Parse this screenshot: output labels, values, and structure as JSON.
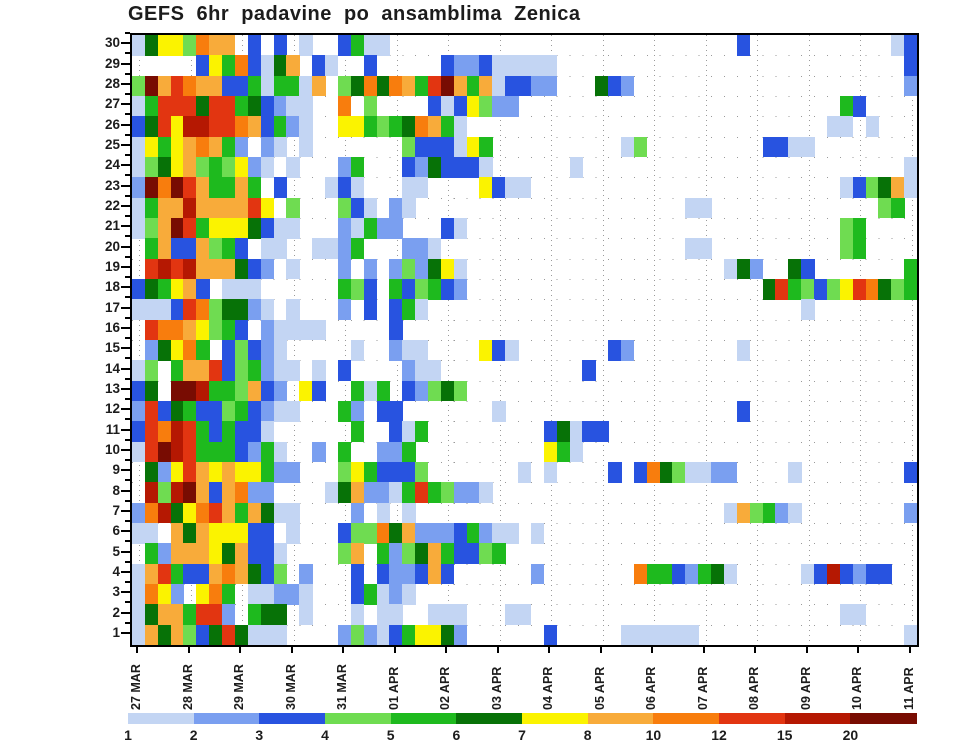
{
  "title": "GEFS 6hr padavine po ansamblima Zenica",
  "y_axis": {
    "labels": [
      "30",
      "29",
      "28",
      "27",
      "26",
      "25",
      "24",
      "23",
      "22",
      "21",
      "20",
      "19",
      "18",
      "17",
      "16",
      "15",
      "14",
      "13",
      "12",
      "11",
      "10",
      "9",
      "8",
      "7",
      "6",
      "5",
      "4",
      "3",
      "2",
      "1"
    ]
  },
  "x_axis": {
    "labels": [
      "27 MAR",
      "28 MAR",
      "29 MAR",
      "30 MAR",
      "31 MAR",
      "01 APR",
      "02 APR",
      "03 APR",
      "04 APR",
      "05 APR",
      "06 APR",
      "07 APR",
      "08 APR",
      "09 APR",
      "10 APR",
      "11 APR"
    ]
  },
  "colorbar": {
    "tick_labels": [
      "1",
      "2",
      "3",
      "4",
      "5",
      "6",
      "7",
      "8",
      "10",
      "12",
      "15",
      "20"
    ],
    "colors": [
      "#c3d5f3",
      "#7a9ff0",
      "#2853e0",
      "#6fdc51",
      "#1eba1e",
      "#077207",
      "#fbf300",
      "#f8ab3a",
      "#f87d0d",
      "#e23511",
      "#b51802",
      "#780c02"
    ]
  },
  "chart_data": {
    "type": "heatmap",
    "title": "GEFS 6hr padavine po ansamblima Zenica",
    "x_days": [
      "27 MAR",
      "28 MAR",
      "29 MAR",
      "30 MAR",
      "31 MAR",
      "01 APR",
      "02 APR",
      "03 APR",
      "04 APR",
      "05 APR",
      "06 APR",
      "07 APR",
      "08 APR",
      "09 APR",
      "10 APR",
      "11 APR"
    ],
    "x_steps_per_day": 4,
    "n_columns": 61,
    "y_categories_top_to_bottom": [
      "30",
      "29",
      "28",
      "27",
      "26",
      "25",
      "24",
      "23",
      "22",
      "21",
      "20",
      "19",
      "18",
      "17",
      "16",
      "15",
      "14",
      "13",
      "12",
      "11",
      "10",
      "9",
      "8",
      "7",
      "6",
      "5",
      "4",
      "3",
      "2",
      "1"
    ],
    "value_thresholds_mm": [
      1,
      2,
      3,
      4,
      5,
      6,
      7,
      8,
      10,
      12,
      15,
      20
    ],
    "palette": {
      "a": "#c3d5f3",
      "b": "#7a9ff0",
      "c": "#2853e0",
      "d": "#6fdc51",
      "e": "#1eba1e",
      "f": "#077207",
      "g": "#fbf300",
      "h": "#f8ab3a",
      "i": "#f87d0d",
      "j": "#e23511",
      "k": "#b51802",
      "l": "#780c02"
    },
    "palette_ranges_mm": {
      "a": "1-2",
      "b": "2-3",
      "c": "3-4",
      "d": "4-5",
      "e": "5-6",
      "f": "6-7",
      "g": "7-8",
      "h": "8-10",
      "i": "10-12",
      "j": "12-15",
      "k": "15-20",
      "l": ">20"
    },
    "no_rain_symbol": ".",
    "grid_rows_top_to_bottom": [
      "afggdihh.c.c.a..ceaa...........................c...........ac",
      ".....cgeicafh.ca..c.....cbbcaaaaa...........................c",
      "dlhjihhcceaeeah.dfifihejlhehaccbb...fcb.....................b",
      "aejjjfjjefcbaa..i.d....cacgdbb.........................ec....",
      "cfjgkkjjihceba..ggedefihea............................aa.a...",
      "ageghiheb.ba.a.......dcccage..........ad.........ccaa........",
      "adfghdedgba.a...be...cbfccca......a.........................a",
      "bliljheehe.c...aca...aa....gcaa........................acdfha",
      "aehhkhhhhjg.d...dca.ba.....................aa.............de.",
      "adhljegggfcaa...baebb...ca.............................de....",
      ".ehcchdec.aa..aabe...bba...................aa..........de....",
      ".jkjkhhhfcb.a...b.b.bdbfga....................afb..fc.......e",
      "cfeghc.aaa......edc.ecdecb.......................fjedcdgjifde",
      "aaacjidffba.a...b.c.cea.............................a........",
      ".jiihgdec.baaaa.....c........................................",
      ".bfgie.cdcba.....a..baa....gca.......cb........a.............",
      "ad.ehhjcdebaa.a.c....baa...........c.........................",
      "cf.llkeedhcb.gc..eae.cbdfd...................................",
      "bjcfeccdecbaa...eb.cc.......a..................c.............",
      "cjikjececca......e..cae.........cfacc........................",
      "ajlkjeeecbea..b.e..bbe..........gea..........................",
      ".fbgjhghggebb...dgecccd.......a.a....c.cifdaabb....a........c",
      ".kdklhchibb....afhbbaejedbba.................................",
      "bikfgijhehfaa....b.a.a........................ahdeba........b",
      "aa.hfhgggcc.a...cddifhbbbcebaa.a.............................",
      ".ebhhhgfhcca....dh.ebdfheccde................................",
      "ahjecchihfcd.b...c.cbbchc......b.......ieecbefa.....ackcbcc..",
      "aigb.gie.aabba...ceaba.......................................",
      "afhhejjb.eff.a...a.aa..aaa...aa........................aa....",
      "ahfhdcfjfaaa....bdbaceggfb......c.....aaaaaa................a"
    ]
  }
}
